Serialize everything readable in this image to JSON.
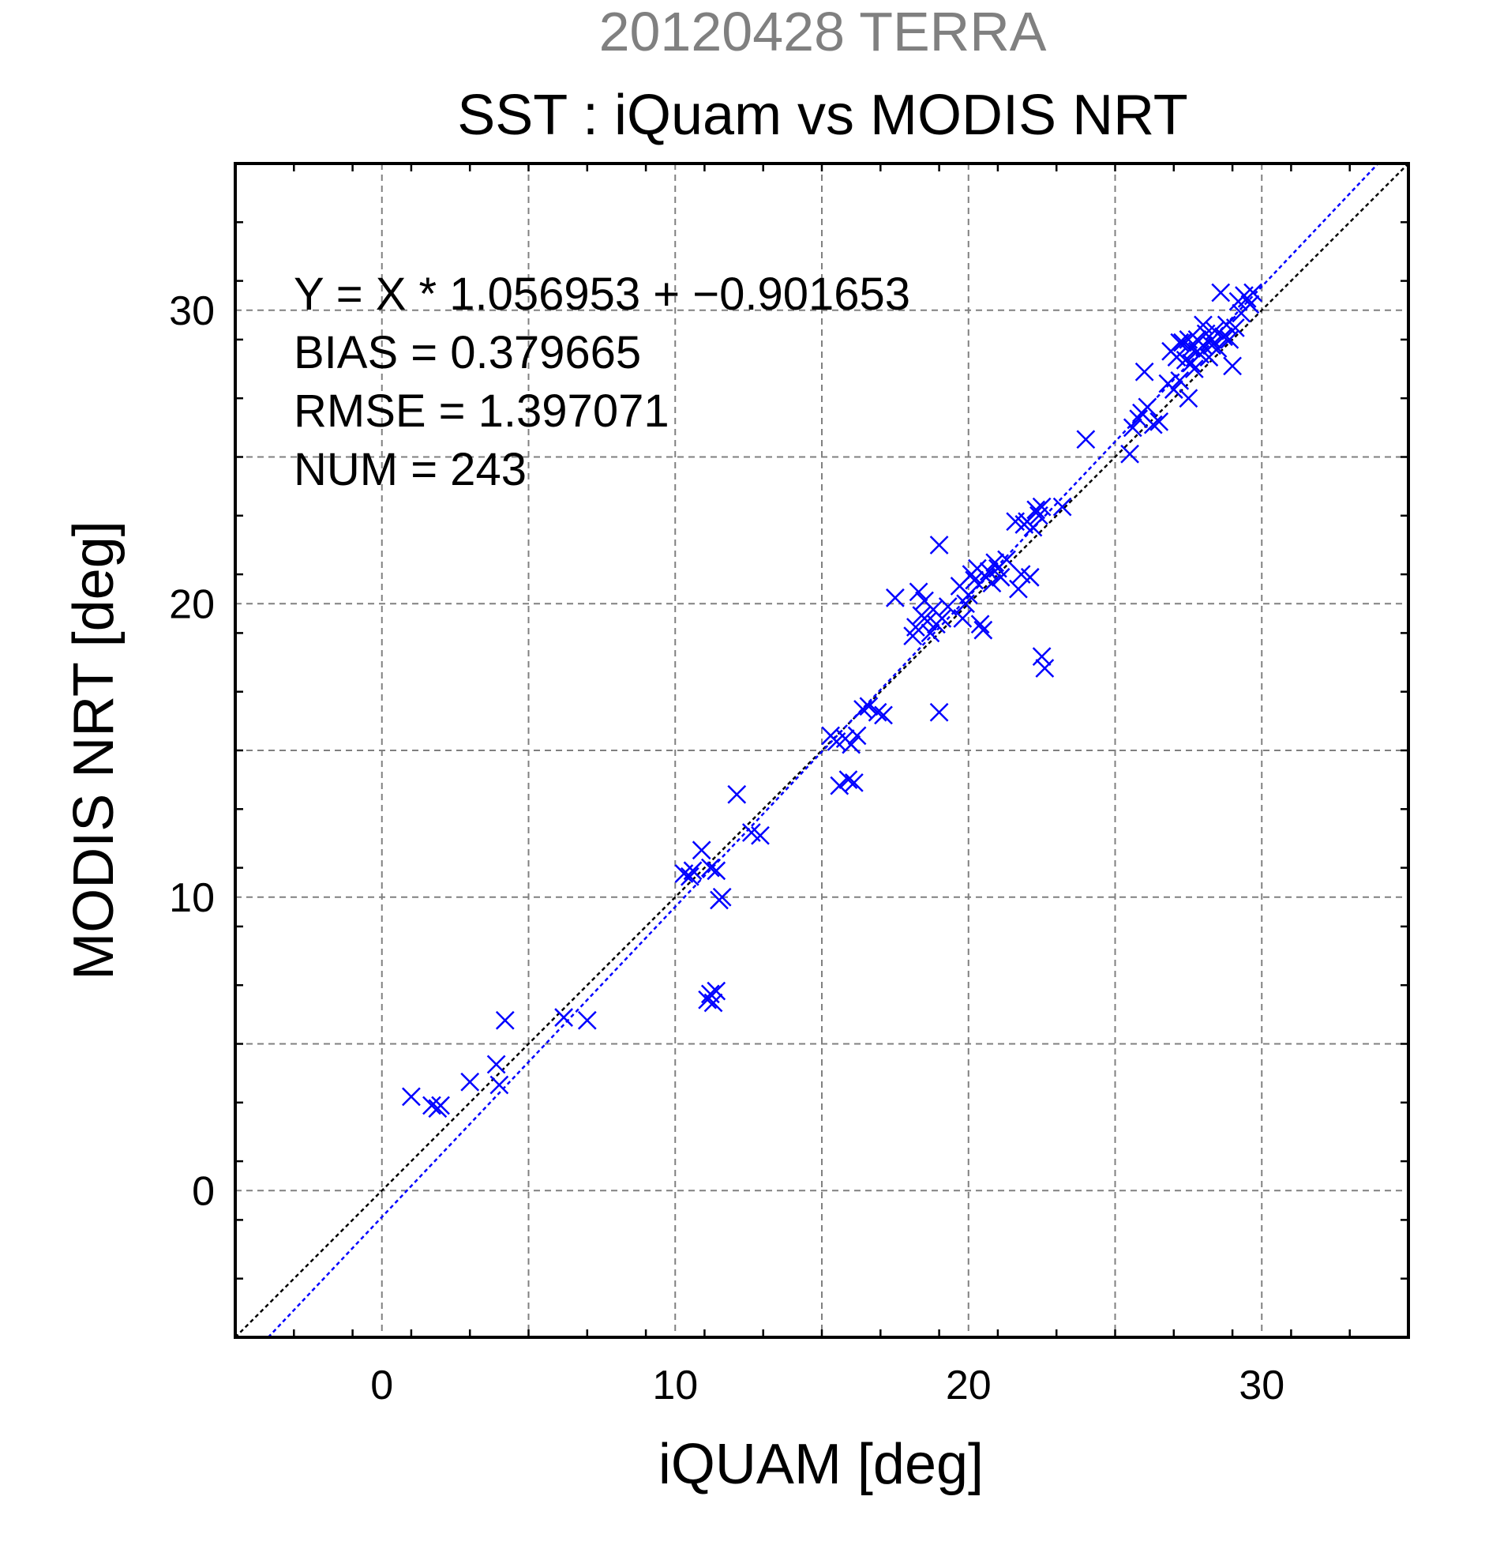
{
  "chart_data": {
    "type": "scatter",
    "subtitle": "20120428 TERRA",
    "title": "SST : iQuam vs MODIS NRT",
    "xlabel": "iQUAM [deg]",
    "ylabel": "MODIS NRT [deg]",
    "xlim": [
      -5,
      35
    ],
    "ylim": [
      -5,
      35
    ],
    "grid": true,
    "x_ticks": [
      "0",
      "10",
      "20",
      "30"
    ],
    "y_ticks": [
      "0",
      "10",
      "20",
      "30"
    ],
    "x_tick_values": [
      0,
      10,
      20,
      30
    ],
    "y_tick_values": [
      0,
      10,
      20,
      30
    ],
    "annotations": [
      "Y = X * 1.056953 + −0.901653",
      "BIAS = 0.379665",
      "RMSE = 1.397071",
      "NUM = 243"
    ],
    "colors": {
      "subtitle": "#808080",
      "points": "#0000ff",
      "fit_line": "#0000ff",
      "identity_line": "#000000",
      "grid": "#808080"
    },
    "lines": [
      {
        "kind": "identity",
        "slope": 1.0,
        "intercept": 0.0
      },
      {
        "kind": "fit",
        "slope": 1.056953,
        "intercept": -0.901653
      }
    ],
    "series": [
      {
        "marker": "x",
        "points": [
          [
            1.0,
            3.2
          ],
          [
            1.7,
            2.9
          ],
          [
            1.9,
            2.8
          ],
          [
            2.0,
            2.9
          ],
          [
            3.0,
            3.7
          ],
          [
            3.9,
            4.3
          ],
          [
            4.0,
            3.6
          ],
          [
            4.2,
            5.8
          ],
          [
            6.2,
            5.9
          ],
          [
            7.0,
            5.8
          ],
          [
            10.3,
            10.8
          ],
          [
            10.5,
            10.7
          ],
          [
            10.6,
            10.9
          ],
          [
            10.9,
            11.6
          ],
          [
            11.1,
            6.5
          ],
          [
            11.2,
            6.7
          ],
          [
            11.3,
            6.4
          ],
          [
            11.4,
            6.8
          ],
          [
            11.2,
            11.0
          ],
          [
            11.4,
            10.9
          ],
          [
            11.5,
            9.9
          ],
          [
            11.6,
            10.0
          ],
          [
            12.1,
            13.5
          ],
          [
            12.6,
            12.2
          ],
          [
            12.9,
            12.1
          ],
          [
            15.3,
            15.5
          ],
          [
            15.5,
            15.3
          ],
          [
            15.6,
            13.8
          ],
          [
            15.8,
            15.4
          ],
          [
            15.9,
            14.0
          ],
          [
            16.0,
            15.2
          ],
          [
            16.1,
            13.9
          ],
          [
            16.2,
            15.5
          ],
          [
            16.4,
            16.4
          ],
          [
            16.6,
            16.5
          ],
          [
            16.9,
            16.3
          ],
          [
            17.1,
            16.2
          ],
          [
            17.5,
            20.2
          ],
          [
            18.1,
            18.9
          ],
          [
            18.2,
            19.2
          ],
          [
            18.3,
            20.4
          ],
          [
            18.4,
            19.6
          ],
          [
            18.5,
            20.1
          ],
          [
            18.6,
            19.4
          ],
          [
            18.7,
            19.0
          ],
          [
            18.8,
            19.8
          ],
          [
            18.9,
            19.3
          ],
          [
            19.0,
            22.0
          ],
          [
            19.0,
            16.3
          ],
          [
            19.1,
            19.5
          ],
          [
            19.3,
            19.9
          ],
          [
            19.7,
            20.6
          ],
          [
            19.8,
            19.5
          ],
          [
            19.9,
            20.0
          ],
          [
            20.0,
            20.3
          ],
          [
            20.1,
            21.0
          ],
          [
            20.2,
            20.8
          ],
          [
            20.3,
            21.2
          ],
          [
            20.4,
            19.3
          ],
          [
            20.5,
            19.1
          ],
          [
            20.6,
            20.9
          ],
          [
            20.7,
            21.1
          ],
          [
            20.8,
            20.7
          ],
          [
            20.9,
            21.4
          ],
          [
            21.0,
            21.2
          ],
          [
            21.1,
            20.9
          ],
          [
            21.3,
            21.5
          ],
          [
            21.6,
            22.8
          ],
          [
            21.7,
            20.5
          ],
          [
            21.8,
            21.0
          ],
          [
            21.9,
            22.7
          ],
          [
            22.0,
            22.8
          ],
          [
            22.1,
            20.9
          ],
          [
            22.2,
            22.6
          ],
          [
            22.3,
            23.2
          ],
          [
            22.4,
            23.0
          ],
          [
            22.5,
            18.2
          ],
          [
            22.6,
            17.8
          ],
          [
            22.5,
            23.3
          ],
          [
            23.2,
            23.3
          ],
          [
            24.0,
            25.6
          ],
          [
            25.5,
            25.1
          ],
          [
            25.6,
            26.0
          ],
          [
            25.8,
            26.3
          ],
          [
            25.9,
            26.5
          ],
          [
            26.0,
            27.9
          ],
          [
            26.1,
            26.7
          ],
          [
            26.3,
            26.1
          ],
          [
            26.5,
            26.2
          ],
          [
            26.8,
            27.5
          ],
          [
            26.9,
            28.6
          ],
          [
            27.0,
            27.3
          ],
          [
            27.1,
            28.4
          ],
          [
            27.2,
            27.6
          ],
          [
            27.3,
            28.9
          ],
          [
            27.4,
            28.3
          ],
          [
            27.5,
            27.0
          ],
          [
            27.6,
            28.7
          ],
          [
            27.7,
            28.0
          ],
          [
            27.8,
            29.0
          ],
          [
            27.9,
            28.5
          ],
          [
            28.0,
            28.8
          ],
          [
            28.1,
            29.2
          ],
          [
            28.2,
            28.4
          ],
          [
            28.3,
            29.0
          ],
          [
            28.4,
            29.3
          ],
          [
            28.5,
            28.7
          ],
          [
            28.6,
            30.6
          ],
          [
            28.7,
            29.1
          ],
          [
            28.8,
            29.5
          ],
          [
            28.9,
            29.0
          ],
          [
            29.0,
            28.1
          ],
          [
            29.1,
            29.4
          ],
          [
            29.2,
            30.3
          ],
          [
            29.3,
            29.9
          ],
          [
            29.4,
            30.5
          ],
          [
            29.5,
            30.4
          ],
          [
            29.6,
            30.2
          ],
          [
            29.7,
            30.6
          ],
          [
            27.5,
            29.0
          ],
          [
            27.8,
            28.6
          ],
          [
            28.0,
            29.5
          ],
          [
            27.2,
            28.9
          ],
          [
            27.6,
            28.2
          ],
          [
            28.3,
            28.8
          ]
        ]
      }
    ]
  }
}
